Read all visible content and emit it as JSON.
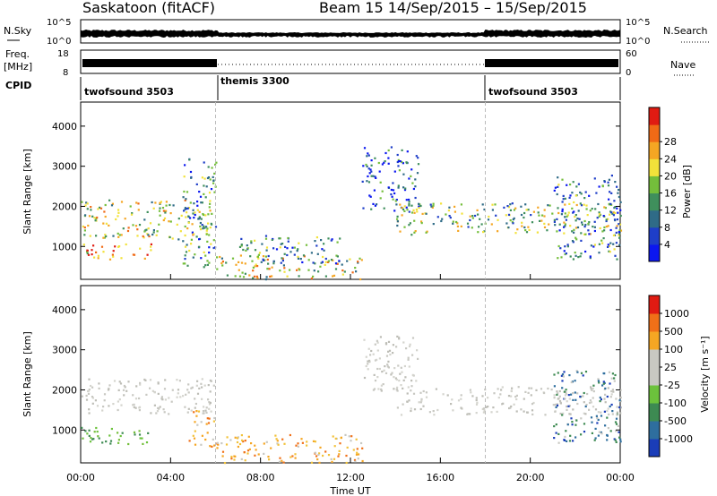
{
  "header": {
    "station": "Saskatoon (fitACF)",
    "beam_and_date": "Beam 15   14/Sep/2015 – 15/Sep/2015"
  },
  "top_panels": {
    "nsky_label": "N.Sky",
    "nsky_ticks": [
      "10^5",
      "10^0"
    ],
    "nsearch_label": "N.Search",
    "nsearch_ticks": [
      "10^5",
      "10^0"
    ],
    "freq_label": "Freq.",
    "freq_unit": "[MHz]",
    "freq_ticks": [
      "18",
      "8"
    ],
    "nave_label": "Nave",
    "nave_ticks": [
      "60",
      "0"
    ],
    "cpid_label": "CPID",
    "cpid_segments": [
      {
        "name": "twofsound 3503",
        "start": 0,
        "end": 6
      },
      {
        "name": "themis 3300",
        "start": 6,
        "end": 18
      },
      {
        "name": "twofsound 3503",
        "start": 18,
        "end": 24
      }
    ]
  },
  "chart_data": [
    {
      "type": "heatmap",
      "panel": "power",
      "ylabel": "Slant Range [km]",
      "xlabel": "Time UT",
      "ylim": [
        180,
        4600
      ],
      "yticks": [
        "1000",
        "2000",
        "3000",
        "4000"
      ],
      "xlim_hours": [
        0,
        24
      ],
      "xticks": [
        "00:00",
        "04:00",
        "08:00",
        "12:00",
        "16:00",
        "20:00",
        "00:00"
      ],
      "colorbar_label": "Power [dB]",
      "colorbar_ticks": [
        "4",
        "8",
        "12",
        "16",
        "20",
        "24",
        "28"
      ],
      "colorbar_colors": [
        "#0b17f0",
        "#1e3ec8",
        "#2f6b87",
        "#3f8f5c",
        "#74be3b",
        "#f2e23a",
        "#f5a623",
        "#f06a16",
        "#e01b12"
      ],
      "scatter_regions": [
        {
          "t0": 0.0,
          "t1": 5.9,
          "r0": 1200,
          "r1": 2200,
          "level": 0.55
        },
        {
          "t0": 0.0,
          "t1": 3.2,
          "r0": 700,
          "r1": 1100,
          "level": 0.7
        },
        {
          "t0": 4.5,
          "t1": 6.0,
          "r0": 500,
          "r1": 3200,
          "level": 0.35
        },
        {
          "t0": 6.0,
          "t1": 12.5,
          "r0": 200,
          "r1": 800,
          "level": 0.6
        },
        {
          "t0": 7.0,
          "t1": 11.5,
          "r0": 600,
          "r1": 1300,
          "level": 0.3
        },
        {
          "t0": 12.5,
          "t1": 15.0,
          "r0": 1900,
          "r1": 3500,
          "level": 0.2
        },
        {
          "t0": 14.0,
          "t1": 24.0,
          "r0": 1300,
          "r1": 2100,
          "level": 0.45
        },
        {
          "t0": 21.0,
          "t1": 24.0,
          "r0": 700,
          "r1": 2800,
          "level": 0.3
        }
      ]
    },
    {
      "type": "heatmap",
      "panel": "velocity",
      "ylabel": "Slant Range [km]",
      "xlabel": "Time UT",
      "ylim": [
        180,
        4600
      ],
      "yticks": [
        "1000",
        "2000",
        "3000",
        "4000"
      ],
      "xlim_hours": [
        0,
        24
      ],
      "xticks": [
        "00:00",
        "04:00",
        "08:00",
        "12:00",
        "16:00",
        "20:00",
        "00:00"
      ],
      "colorbar_label": "Velocity [m s⁻¹]",
      "colorbar_ticks": [
        "1000",
        "500",
        "100",
        "25",
        "-25",
        "-100",
        "-500",
        "-1000"
      ],
      "colorbar_colors": [
        "#1a3db8",
        "#2e6e9e",
        "#3d8a52",
        "#6cc23c",
        "#c8c8c2",
        "#c8c8c2",
        "#f5a623",
        "#f07018",
        "#e01b12"
      ],
      "scatter_regions": [
        {
          "t0": 0.0,
          "t1": 5.9,
          "r0": 1400,
          "r1": 2300,
          "level": "ground"
        },
        {
          "t0": 0.0,
          "t1": 3.2,
          "r0": 650,
          "r1": 1100,
          "level": "green"
        },
        {
          "t0": 4.8,
          "t1": 6.0,
          "r0": 600,
          "r1": 1500,
          "level": "orange"
        },
        {
          "t0": 6.0,
          "t1": 12.5,
          "r0": 200,
          "r1": 900,
          "level": "orange"
        },
        {
          "t0": 12.5,
          "t1": 15.0,
          "r0": 2000,
          "r1": 3400,
          "level": "ground"
        },
        {
          "t0": 14.0,
          "t1": 24.0,
          "r0": 1400,
          "r1": 2100,
          "level": "ground"
        },
        {
          "t0": 21.0,
          "t1": 24.0,
          "r0": 700,
          "r1": 2500,
          "level": "blue"
        }
      ]
    }
  ]
}
